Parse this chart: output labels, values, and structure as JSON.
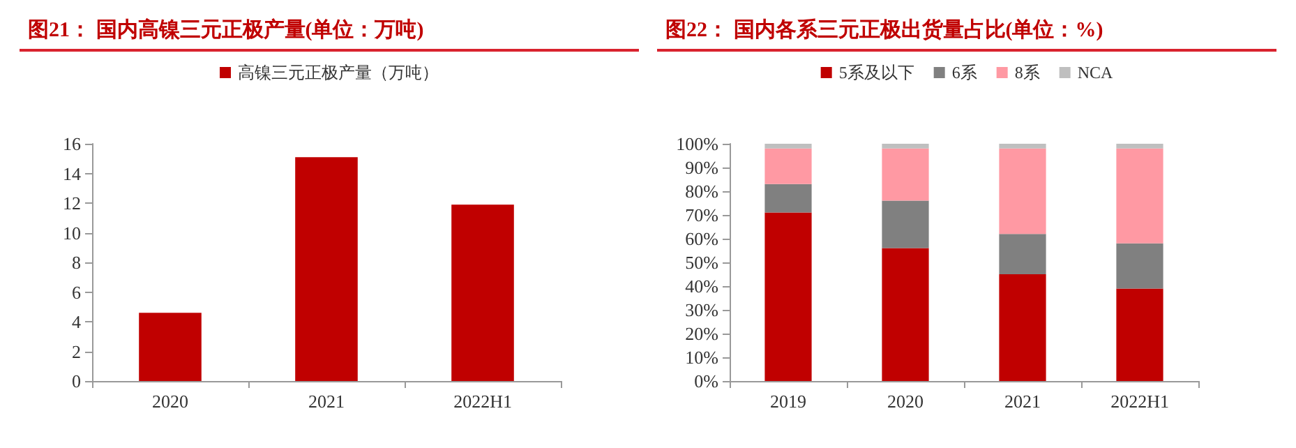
{
  "chart_data": [
    {
      "type": "bar",
      "title": "图21：  国内高镍三元正极产量(单位：万吨)",
      "categories": [
        "2020",
        "2021",
        "2022H1"
      ],
      "series": [
        {
          "name": "高镍三元正极产量（万吨）",
          "color": "#c00000",
          "values": [
            4.6,
            15.1,
            11.9
          ]
        }
      ],
      "ylim": [
        0,
        16
      ],
      "yticks": [
        0,
        2,
        4,
        6,
        8,
        10,
        12,
        14,
        16
      ],
      "grid": false,
      "legend": "top"
    },
    {
      "type": "bar",
      "title": "图22：  国内各系三元正极出货量占比(单位：%)",
      "categories": [
        "2019",
        "2020",
        "2021",
        "2022H1"
      ],
      "stacked": true,
      "series": [
        {
          "name": "5系及以下",
          "color": "#c00000",
          "values": [
            71,
            56,
            45,
            39
          ]
        },
        {
          "name": "6系",
          "color": "#808080",
          "values": [
            12,
            20,
            17,
            19
          ]
        },
        {
          "name": "8系",
          "color": "#ff99a3",
          "values": [
            15,
            22,
            36,
            40
          ]
        },
        {
          "name": "NCA",
          "color": "#bfbfbf",
          "values": [
            2,
            2,
            2,
            2
          ]
        }
      ],
      "ylim": [
        0,
        100
      ],
      "yticks": [
        {
          "value": 0,
          "label": "0%"
        },
        {
          "value": 10,
          "label": "10%"
        },
        {
          "value": 20,
          "label": "20%"
        },
        {
          "value": 30,
          "label": "30%"
        },
        {
          "value": 40,
          "label": "40%"
        },
        {
          "value": 50,
          "label": "50%"
        },
        {
          "value": 60,
          "label": "60%"
        },
        {
          "value": 70,
          "label": "70%"
        },
        {
          "value": 80,
          "label": "80%"
        },
        {
          "value": 90,
          "label": "90%"
        },
        {
          "value": 100,
          "label": "100%"
        }
      ],
      "grid": false,
      "legend": "top"
    }
  ]
}
